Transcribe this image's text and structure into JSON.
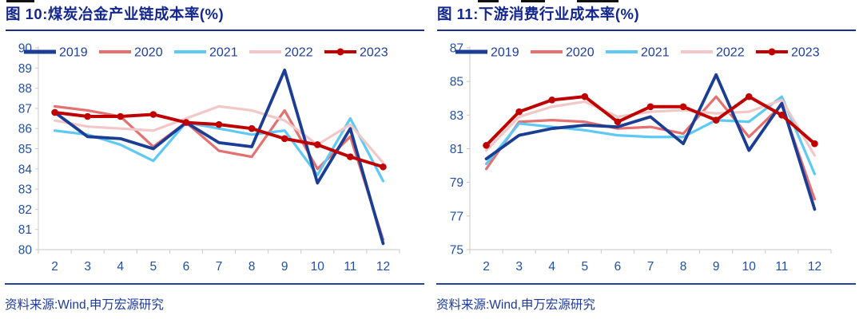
{
  "footer": {
    "source_label": "资料来源:Wind,申万宏源研究"
  },
  "chart_data": [
    {
      "type": "line",
      "title": "图 10:煤炭冶金产业链成本率(%)",
      "xlabel": "",
      "ylabel": "",
      "categories": [
        "2",
        "3",
        "4",
        "5",
        "6",
        "7",
        "8",
        "9",
        "10",
        "11",
        "12"
      ],
      "ylim": [
        80,
        90
      ],
      "ytick_step": 1,
      "grid": false,
      "legend_position": "top-inside",
      "series": [
        {
          "name": "2019",
          "color": "#1B3E94",
          "marker": false,
          "values": [
            86.8,
            85.6,
            85.5,
            85.0,
            86.3,
            85.3,
            85.1,
            88.9,
            83.3,
            86.0,
            80.3
          ]
        },
        {
          "name": "2020",
          "color": "#E57070",
          "marker": false,
          "values": [
            87.1,
            86.9,
            86.6,
            85.1,
            86.3,
            84.9,
            84.6,
            86.9,
            84.0,
            85.6,
            80.5
          ]
        },
        {
          "name": "2021",
          "color": "#5EC9F5",
          "marker": false,
          "values": [
            85.9,
            85.7,
            85.2,
            84.4,
            86.3,
            86.0,
            85.7,
            85.9,
            83.7,
            86.5,
            83.4
          ]
        },
        {
          "name": "2022",
          "color": "#F2C7C7",
          "marker": false,
          "values": [
            86.4,
            86.1,
            86.0,
            85.9,
            86.5,
            87.1,
            86.9,
            86.4,
            85.2,
            86.2,
            84.3
          ]
        },
        {
          "name": "2023",
          "color": "#C00000",
          "marker": true,
          "values": [
            86.8,
            86.6,
            86.6,
            86.7,
            86.3,
            86.2,
            86.0,
            85.5,
            85.2,
            84.6,
            84.1
          ]
        }
      ]
    },
    {
      "type": "line",
      "title": "图 11:下游消费行业成本率(%)",
      "xlabel": "",
      "ylabel": "",
      "categories": [
        "2",
        "3",
        "4",
        "5",
        "6",
        "7",
        "8",
        "9",
        "10",
        "11",
        "12"
      ],
      "ylim": [
        75,
        87
      ],
      "ytick_step": 2,
      "grid": false,
      "legend_position": "top-inside",
      "series": [
        {
          "name": "2019",
          "color": "#1B3E94",
          "marker": false,
          "values": [
            80.4,
            81.8,
            82.2,
            82.4,
            82.3,
            82.9,
            81.3,
            85.4,
            80.9,
            83.7,
            77.4
          ]
        },
        {
          "name": "2020",
          "color": "#E57070",
          "marker": false,
          "values": [
            79.8,
            82.6,
            82.7,
            82.6,
            82.2,
            82.3,
            81.9,
            84.1,
            81.7,
            83.6,
            78.0
          ]
        },
        {
          "name": "2021",
          "color": "#5EC9F5",
          "marker": false,
          "values": [
            80.1,
            82.5,
            82.3,
            82.1,
            81.8,
            81.7,
            81.7,
            82.7,
            82.6,
            84.1,
            79.5
          ]
        },
        {
          "name": "2022",
          "color": "#F2C7C7",
          "marker": false,
          "values": [
            80.9,
            82.9,
            83.5,
            83.8,
            82.9,
            83.2,
            83.3,
            83.1,
            83.2,
            83.9,
            80.6
          ]
        },
        {
          "name": "2023",
          "color": "#C00000",
          "marker": true,
          "values": [
            81.2,
            83.2,
            83.9,
            84.1,
            82.6,
            83.5,
            83.5,
            82.7,
            84.1,
            83.0,
            81.3
          ]
        }
      ]
    }
  ]
}
